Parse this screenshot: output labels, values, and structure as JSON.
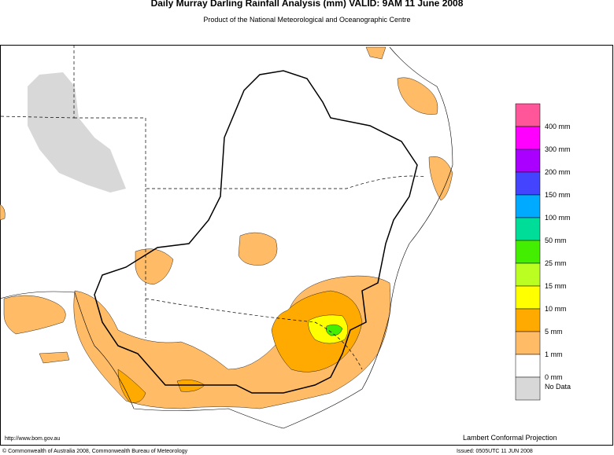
{
  "header": {
    "title": "Daily Murray Darling Rainfall Analysis (mm)  VALID: 9AM 11 June 2008",
    "subtitle": "Product of the National Meteorological and Oceanographic Centre"
  },
  "legend": {
    "colors": [
      "#ff5599",
      "#ff00ff",
      "#aa00ff",
      "#4444ff",
      "#00aaff",
      "#00dd99",
      "#44ee00",
      "#bbff22",
      "#ffff00",
      "#ffaa00",
      "#ffbb66",
      "#ffffff",
      "#d8d8d8"
    ],
    "labels": [
      "400 mm",
      "300 mm",
      "200 mm",
      "150 mm",
      "100 mm",
      "50 mm",
      "25 mm",
      "15 mm",
      "10 mm",
      "5 mm",
      "1 mm",
      "0 mm",
      "No Data"
    ]
  },
  "map": {
    "url": "http://www.bom.gov.au",
    "projection": "Lambert Conformal Projection"
  },
  "footer": {
    "copyright": "© Commonwealth of Australia 2008, Commonwealth Bureau of Meteorology",
    "issued": "Issued: 0505UTC 11 JUN 2008"
  }
}
